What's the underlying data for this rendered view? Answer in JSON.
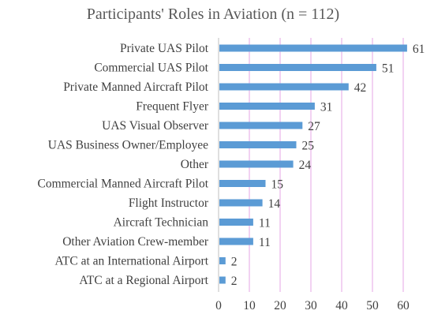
{
  "chart_data": {
    "type": "bar",
    "orientation": "horizontal",
    "title": "Participants' Roles in Aviation (n = 112)",
    "categories": [
      "Private UAS Pilot",
      "Commercial UAS Pilot",
      "Private Manned Aircraft Pilot",
      "Frequent Flyer",
      "UAS Visual Observer",
      "UAS Business Owner/Employee",
      "Other",
      "Commercial Manned Aircraft Pilot",
      "Flight Instructor",
      "Aircraft Technician",
      "Other Aviation Crew-member",
      "ATC at an International Airport",
      "ATC at a Regional Airport"
    ],
    "values": [
      61,
      51,
      42,
      31,
      27,
      25,
      24,
      15,
      14,
      11,
      11,
      2,
      2
    ],
    "xlabel": "",
    "ylabel": "",
    "xlim": [
      0,
      60
    ],
    "xticks": [
      "0",
      "10",
      "20",
      "30",
      "40",
      "50",
      "60"
    ],
    "grid": "vertical",
    "legend": "none",
    "colors": {
      "bar": "#5B9BD5",
      "grid": "#E6A6E6",
      "axis": "#BFBFBF"
    }
  }
}
